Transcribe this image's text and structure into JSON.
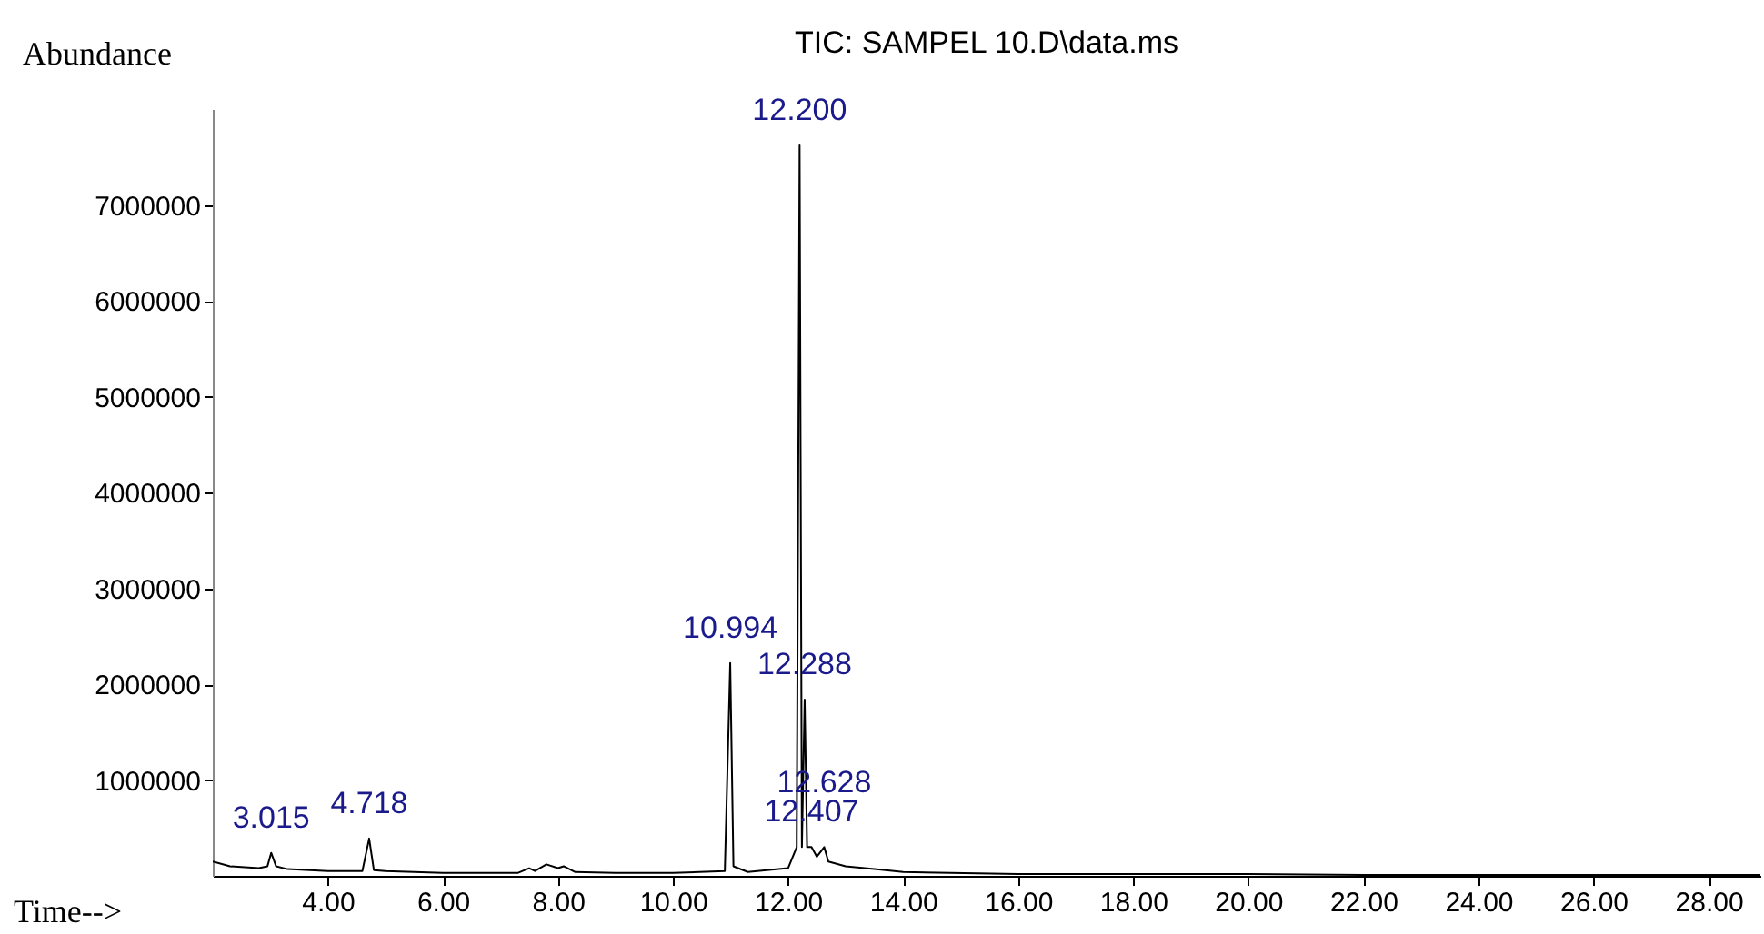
{
  "chart_data": {
    "type": "line",
    "title": "TIC: SAMPEL 10.D\\data.ms",
    "xlabel": "Time-->",
    "ylabel": "Abundance",
    "x": [
      2.0,
      2.3,
      2.8,
      2.95,
      3.015,
      3.1,
      3.3,
      4.0,
      4.6,
      4.718,
      4.8,
      5.0,
      6.0,
      7.3,
      7.5,
      7.6,
      7.8,
      8.0,
      8.1,
      8.3,
      9.0,
      10.0,
      10.9,
      10.994,
      11.05,
      11.3,
      12.0,
      12.15,
      12.2,
      12.24,
      12.288,
      12.33,
      12.407,
      12.5,
      12.628,
      12.7,
      13.0,
      13.5,
      14.0,
      16.0,
      18.0,
      20.0,
      22.0,
      28.9
    ],
    "series": [
      {
        "color": "#000000",
        "values": [
          150000,
          100000,
          80000,
          100000,
          240000,
          100000,
          70000,
          50000,
          50000,
          390000,
          60000,
          50000,
          30000,
          30000,
          80000,
          50000,
          120000,
          80000,
          100000,
          40000,
          30000,
          30000,
          50000,
          2220000,
          100000,
          40000,
          80000,
          300000,
          7620000,
          300000,
          1840000,
          300000,
          300000,
          200000,
          300000,
          150000,
          100000,
          70000,
          40000,
          20000,
          20000,
          20000,
          10000,
          10000
        ]
      }
    ],
    "xlim": [
      2.0,
      28.9
    ],
    "ylim": [
      0,
      8000000
    ],
    "xticks": [
      {
        "value": 4,
        "label": "4.00"
      },
      {
        "value": 6,
        "label": "6.00"
      },
      {
        "value": 8,
        "label": "8.00"
      },
      {
        "value": 10,
        "label": "10.00"
      },
      {
        "value": 12,
        "label": "12.00"
      },
      {
        "value": 14,
        "label": "14.00"
      },
      {
        "value": 16,
        "label": "16.00"
      },
      {
        "value": 18,
        "label": "18.00"
      },
      {
        "value": 20,
        "label": "20.00"
      },
      {
        "value": 22,
        "label": "22.00"
      },
      {
        "value": 24,
        "label": "24.00"
      },
      {
        "value": 26,
        "label": "26.00"
      },
      {
        "value": 28,
        "label": "28.00"
      }
    ],
    "yticks": [
      1000000,
      2000000,
      3000000,
      4000000,
      5000000,
      6000000,
      7000000
    ],
    "grid": false,
    "marker": "none",
    "line_style": "solid",
    "annotations": [
      {
        "text": "3.015",
        "x": 3.015,
        "y": 240000
      },
      {
        "text": "4.718",
        "x": 4.718,
        "y": 390000
      },
      {
        "text": "10.994",
        "x": 10.994,
        "y": 2220000
      },
      {
        "text": "12.200",
        "x": 12.2,
        "y": 7620000
      },
      {
        "text": "12.288",
        "x": 12.288,
        "y": 1840000
      },
      {
        "text": "12.407",
        "x": 12.407,
        "y": 300000
      },
      {
        "text": "12.628",
        "x": 12.628,
        "y": 300000
      }
    ]
  }
}
